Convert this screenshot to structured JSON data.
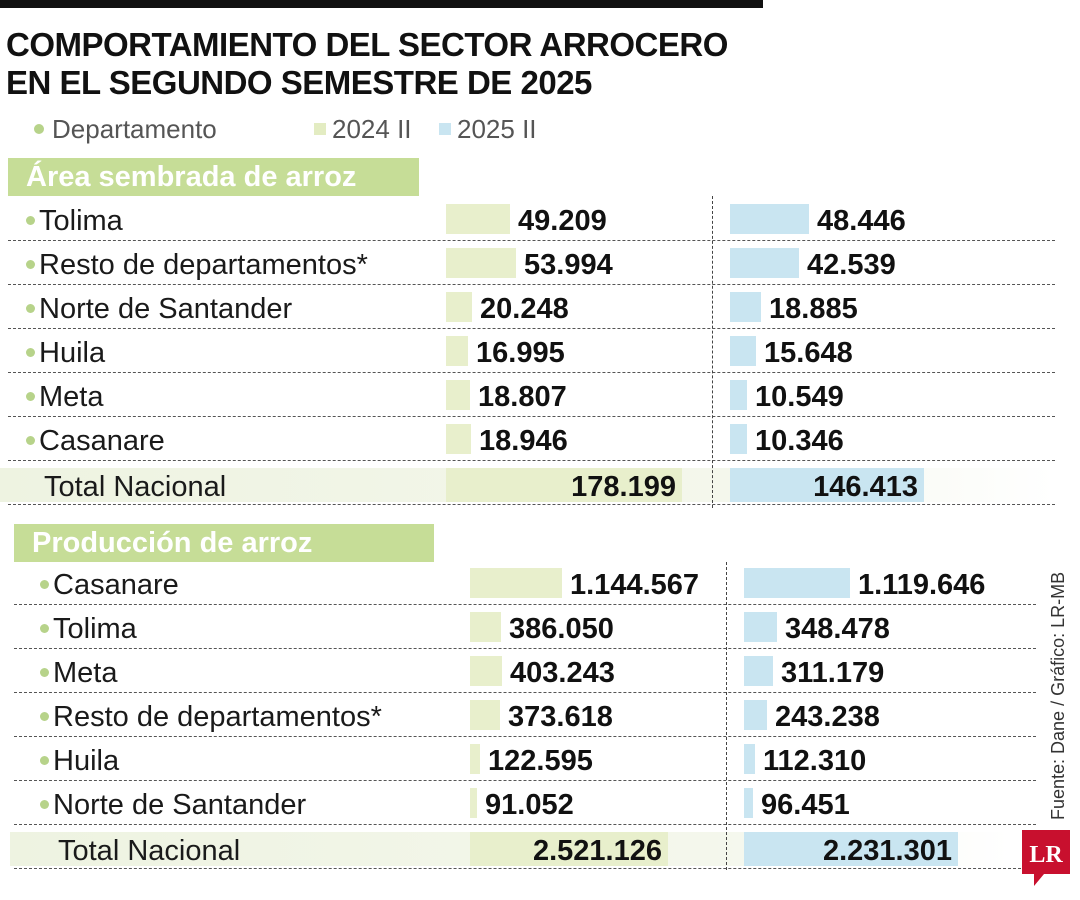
{
  "title": {
    "line1": "COMPORTAMIENTO DEL SECTOR ARROCERO",
    "line2": "EN EL SEGUNDO SEMESTRE DE 2025"
  },
  "legend": {
    "department": "Departamento",
    "series_2024": "2024 II",
    "series_2025": "2025 II"
  },
  "colors": {
    "bar_2024": "#e8efcc",
    "bar_2025": "#c9e5f1",
    "header_bg": "#c6dd97",
    "bullet": "#b7d38a",
    "logo": "#c8102e"
  },
  "chart_data": [
    {
      "type": "bar",
      "title": "Área sembrada de arroz",
      "categories": [
        "Tolima",
        "Resto de departamentos*",
        "Norte de Santander",
        "Huila",
        "Meta",
        "Casanare"
      ],
      "series": [
        {
          "name": "2024 II",
          "values": [
            49209,
            53994,
            20248,
            16995,
            18807,
            18946
          ],
          "labels": [
            "49.209",
            "53.994",
            "20.248",
            "16.995",
            "18.807",
            "18.946"
          ]
        },
        {
          "name": "2025 II",
          "values": [
            48446,
            42539,
            18885,
            15648,
            10549,
            10346
          ],
          "labels": [
            "48.446",
            "42.539",
            "18.885",
            "15.648",
            "10.549",
            "10.346"
          ]
        }
      ],
      "total": {
        "label": "Total Nacional",
        "values": [
          178199,
          146413
        ],
        "labels": [
          "178.199",
          "146.413"
        ]
      }
    },
    {
      "type": "bar",
      "title": "Producción de arroz",
      "categories": [
        "Casanare",
        "Tolima",
        "Meta",
        "Resto de departamentos*",
        "Huila",
        "Norte de Santander"
      ],
      "series": [
        {
          "name": "2024 II",
          "values": [
            1144567,
            386050,
            403243,
            373618,
            122595,
            91052
          ],
          "labels": [
            "1.144.567",
            "386.050",
            "403.243",
            "373.618",
            "122.595",
            "91.052"
          ]
        },
        {
          "name": "2025 II",
          "values": [
            1119646,
            348478,
            311179,
            243238,
            112310,
            96451
          ],
          "labels": [
            "1.119.646",
            "348.478",
            "311.179",
            "243.238",
            "112.310",
            "96.451"
          ]
        }
      ],
      "total": {
        "label": "Total Nacional",
        "values": [
          2521126,
          2231301
        ],
        "labels": [
          "2.521.126",
          "2.231.301"
        ]
      }
    }
  ],
  "source": "Fuente: Dane / Gráfico: LR-MB",
  "logo": {
    "text": "LR",
    "icon": "lr-logo-icon"
  }
}
